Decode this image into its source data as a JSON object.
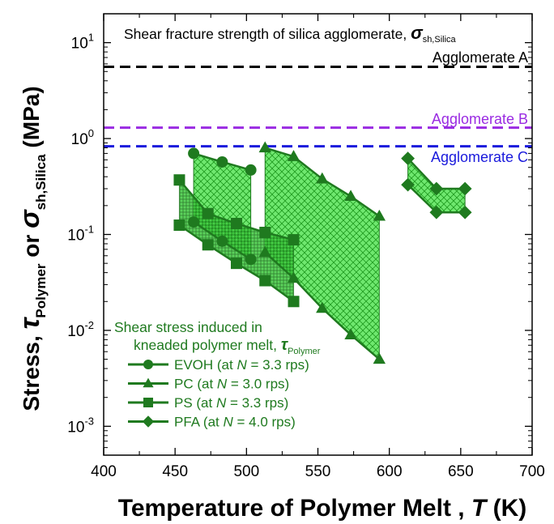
{
  "chart_data": {
    "type": "scatter",
    "x_axis": {
      "label_main": "Temperature of Polymer Melt , ",
      "label_var": "T",
      "label_unit": " (K)",
      "range": [
        400,
        700
      ],
      "ticks": [
        400,
        450,
        500,
        550,
        600,
        650,
        700
      ],
      "tick_labels": [
        "400",
        "450",
        "500",
        "550",
        "600",
        "650",
        "700"
      ]
    },
    "y_axis": {
      "scale": "log",
      "label_a": "Stress, ",
      "label_tau": "τ",
      "label_tau_sub": "Polymer",
      "label_or": " or ",
      "label_sigma": "σ",
      "label_sigma_sub": "sh,Silica",
      "label_unit": " (MPa)",
      "range": [
        0.0005,
        20
      ],
      "ticks": [
        0.001,
        0.01,
        0.1,
        1,
        10
      ],
      "tick_base": "10",
      "tick_exponents": [
        "-3",
        "-2",
        "-1",
        "0",
        "1"
      ]
    },
    "silica_header": {
      "text": "Shear fracture strength of silica agglomerate, ",
      "symbol": "σ",
      "sub": "sh,Silica"
    },
    "reference_lines": [
      {
        "name": "Agglomerate A",
        "y": 5.6,
        "color": "#000000"
      },
      {
        "name": "Agglomerate B",
        "y": 1.3,
        "color": "#9a2be2"
      },
      {
        "name": "Agglomerate C",
        "y": 0.83,
        "color": "#1a1adc"
      }
    ],
    "series": [
      {
        "name": "EVOH",
        "marker": "circle",
        "upper": {
          "x": [
            463,
            483,
            503
          ],
          "y": [
            0.7,
            0.57,
            0.47
          ]
        },
        "lower": {
          "x": [
            463,
            483,
            503
          ],
          "y": [
            0.135,
            0.085,
            0.055
          ]
        }
      },
      {
        "name": "PC",
        "marker": "triangle",
        "upper": {
          "x": [
            513,
            533,
            553,
            573,
            593
          ],
          "y": [
            0.8,
            0.65,
            0.38,
            0.25,
            0.155
          ]
        },
        "lower": {
          "x": [
            513,
            533,
            553,
            573,
            593
          ],
          "y": [
            0.065,
            0.035,
            0.017,
            0.009,
            0.005
          ]
        }
      },
      {
        "name": "PS",
        "marker": "square",
        "upper": {
          "x": [
            453,
            473,
            493,
            513,
            533
          ],
          "y": [
            0.37,
            0.165,
            0.13,
            0.105,
            0.088
          ]
        },
        "lower": {
          "x": [
            453,
            473,
            493,
            513,
            533
          ],
          "y": [
            0.125,
            0.078,
            0.05,
            0.033,
            0.02
          ]
        }
      },
      {
        "name": "PFA",
        "marker": "diamond",
        "upper": {
          "x": [
            613,
            633,
            653
          ],
          "y": [
            0.62,
            0.3,
            0.3
          ]
        },
        "lower": {
          "x": [
            613,
            633,
            653
          ],
          "y": [
            0.33,
            0.17,
            0.17
          ]
        }
      }
    ],
    "legend": {
      "title_line1": "Shear stress induced in",
      "title_line2": "kneaded polymer melt, ",
      "title_symbol": "τ",
      "title_sub": "Polymer",
      "placement": "bottom-left",
      "entries": [
        {
          "name": "EVOH",
          "pre": "EVOH (at ",
          "var": "N",
          "post": " = 3.3 rps)",
          "marker": "circle"
        },
        {
          "name": "PC",
          "pre": "PC (at ",
          "var": "N",
          "post": " = 3.0 rps)",
          "marker": "triangle"
        },
        {
          "name": "PS",
          "pre": "PS  (at ",
          "var": "N",
          "post": " = 3.3 rps)",
          "marker": "square"
        },
        {
          "name": "PFA",
          "pre": "PFA (at ",
          "var": "N",
          "post": " = 4.0 rps)",
          "marker": "diamond"
        }
      ]
    },
    "colors": {
      "series": "#1f7a1f",
      "fill": "#58e158",
      "hatch": "#1f9a1f",
      "axis": "#000000"
    }
  }
}
